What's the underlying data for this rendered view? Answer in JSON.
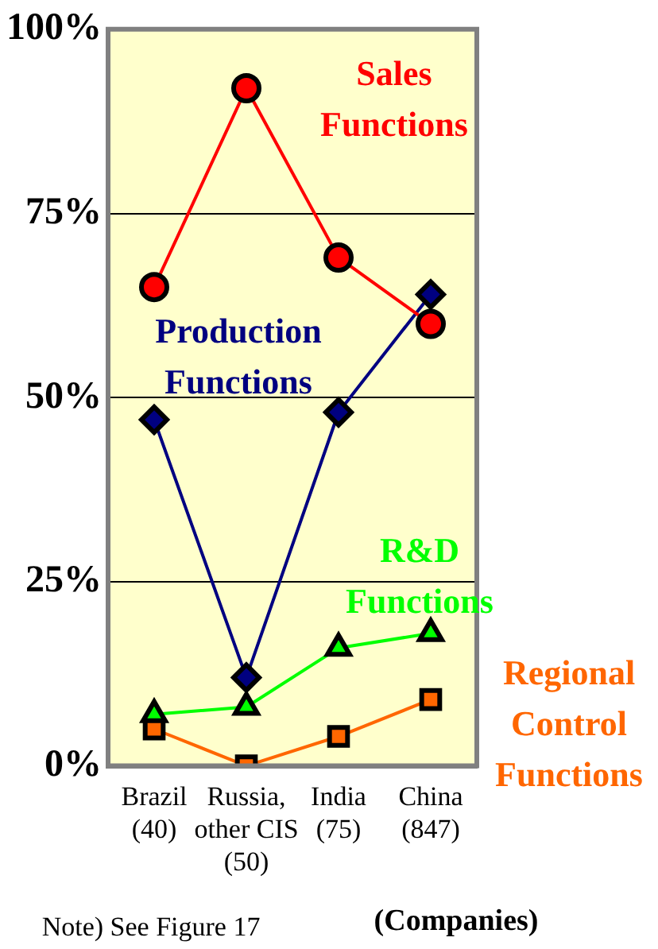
{
  "chart_data": {
    "type": "line",
    "categories": [
      "Brazil\n(40)",
      "Russia,\nother CIS\n(50)",
      "India\n(75)",
      "China\n(847)"
    ],
    "series": [
      {
        "name": "Sales Functions",
        "color": "#ff0000",
        "marker": "circle",
        "values": [
          65,
          92,
          69,
          60
        ]
      },
      {
        "name": "Production Functions",
        "color": "#000080",
        "marker": "diamond",
        "values": [
          47,
          12,
          48,
          64
        ]
      },
      {
        "name": "R&D Functions",
        "color": "#00ff00",
        "marker": "triangle",
        "values": [
          7,
          8,
          16,
          18
        ]
      },
      {
        "name": "Regional Control Functions",
        "color": "#ff6600",
        "marker": "square",
        "values": [
          5,
          0,
          4,
          9
        ]
      }
    ],
    "ylim": [
      0,
      100
    ],
    "yticks": [
      {
        "value": 0,
        "label": "0%"
      },
      {
        "value": 25,
        "label": "25%"
      },
      {
        "value": 50,
        "label": "50%"
      },
      {
        "value": 75,
        "label": "75%"
      },
      {
        "value": 100,
        "label": "100%"
      }
    ],
    "xlabel": "(Companies)",
    "annotations": [
      "Note) See Figure 17"
    ],
    "grid": "y",
    "legend": false
  }
}
